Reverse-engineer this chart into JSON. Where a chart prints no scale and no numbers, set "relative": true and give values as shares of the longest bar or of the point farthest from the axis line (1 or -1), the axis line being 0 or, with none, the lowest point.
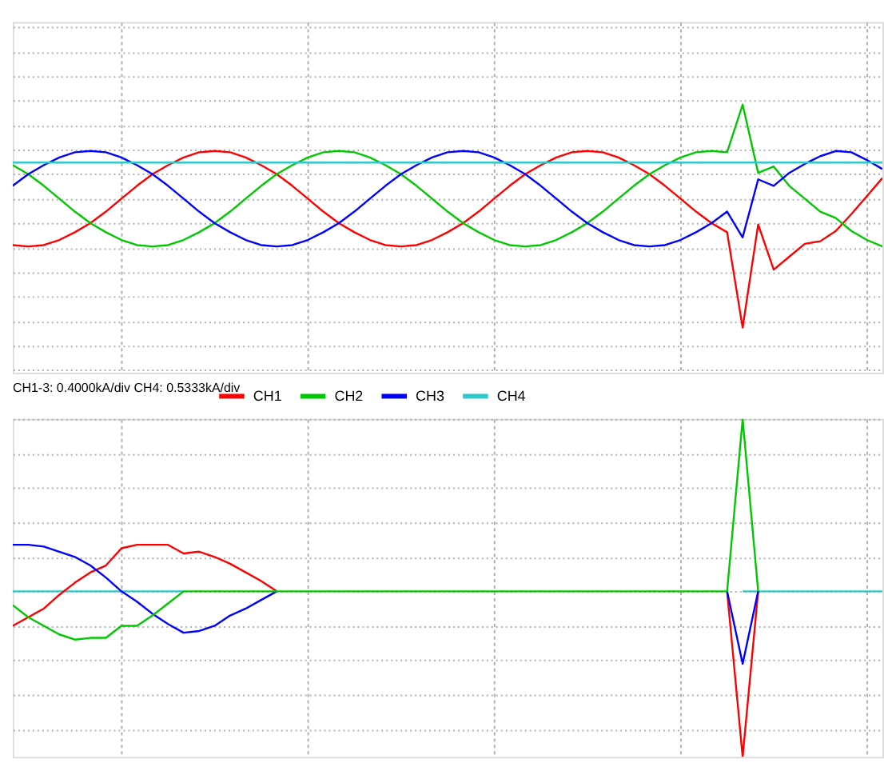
{
  "chart_data": [
    {
      "type": "line",
      "relative": true,
      "grid": true,
      "legend": "bottom",
      "tick_labels": false,
      "annotations": [
        "CH1-3: 0.4000kA/div CH4: 0.5333kA/div"
      ],
      "categories": [
        null,
        null,
        null,
        null,
        null,
        null,
        null,
        null,
        null,
        null,
        null,
        null,
        null,
        null,
        null,
        null,
        null,
        null,
        null,
        null,
        null,
        null,
        null,
        null,
        null,
        null,
        null,
        null,
        null,
        null,
        null,
        null,
        null,
        null,
        null,
        null,
        null,
        null,
        null,
        null,
        null,
        null,
        null,
        null,
        null,
        null,
        null,
        null,
        null,
        null,
        null,
        null,
        null,
        null,
        null,
        null,
        null
      ],
      "series": [
        {
          "name": "CH1",
          "color": "#ff0000",
          "values": [
            -0.36,
            -0.37,
            -0.36,
            -0.32,
            -0.26,
            -0.19,
            -0.1,
            0,
            0.1,
            0.19,
            0.26,
            0.32,
            0.36,
            0.37,
            0.36,
            0.32,
            0.26,
            0.19,
            0.1,
            0,
            -0.1,
            -0.19,
            -0.26,
            -0.32,
            -0.36,
            -0.37,
            -0.36,
            -0.32,
            -0.26,
            -0.19,
            -0.1,
            0,
            0.1,
            0.19,
            0.26,
            0.32,
            0.36,
            0.37,
            0.36,
            0.32,
            0.26,
            0.19,
            0.1,
            0,
            -0.1,
            -0.19,
            -0.26,
            -1.0,
            -0.2,
            -0.55,
            -0.45,
            -0.35,
            -0.33,
            -0.25,
            -0.12,
            0.02,
            0.16
          ]
        },
        {
          "name": "CH2",
          "color": "#00c800",
          "values": [
            0.26,
            0.19,
            0.1,
            0,
            -0.1,
            -0.19,
            -0.26,
            -0.32,
            -0.36,
            -0.37,
            -0.36,
            -0.32,
            -0.26,
            -0.19,
            -0.1,
            0,
            0.1,
            0.19,
            0.26,
            0.32,
            0.36,
            0.37,
            0.36,
            0.32,
            0.26,
            0.19,
            0.1,
            0,
            -0.1,
            -0.19,
            -0.26,
            -0.32,
            -0.36,
            -0.37,
            -0.36,
            -0.32,
            -0.26,
            -0.19,
            -0.1,
            0,
            0.1,
            0.19,
            0.26,
            0.32,
            0.36,
            0.37,
            0.36,
            0.73,
            0.2,
            0.25,
            0.1,
            0.0,
            -0.1,
            -0.15,
            -0.25,
            -0.32,
            -0.37
          ]
        },
        {
          "name": "CH3",
          "color": "#0000ff",
          "values": [
            0.1,
            0.19,
            0.26,
            0.32,
            0.36,
            0.37,
            0.36,
            0.32,
            0.26,
            0.19,
            0.1,
            0,
            -0.1,
            -0.19,
            -0.26,
            -0.32,
            -0.36,
            -0.37,
            -0.36,
            -0.32,
            -0.26,
            -0.19,
            -0.1,
            0,
            0.1,
            0.19,
            0.26,
            0.32,
            0.36,
            0.37,
            0.36,
            0.32,
            0.26,
            0.19,
            0.1,
            0,
            -0.1,
            -0.19,
            -0.26,
            -0.32,
            -0.36,
            -0.37,
            -0.36,
            -0.32,
            -0.26,
            -0.19,
            -0.1,
            -0.3,
            0.15,
            0.1,
            0.2,
            0.27,
            0.33,
            0.37,
            0.36,
            0.3,
            0.23
          ]
        },
        {
          "name": "CH4",
          "color": "#30c8c8",
          "values": [
            0.28,
            0.28,
            0.28,
            0.28,
            0.28,
            0.28,
            0.28,
            0.28,
            0.28,
            0.28,
            0.28,
            0.28,
            0.28,
            0.28,
            0.28,
            0.28,
            0.28,
            0.28,
            0.28,
            0.28,
            0.28,
            0.28,
            0.28,
            0.28,
            0.28,
            0.28,
            0.28,
            0.28,
            0.28,
            0.28,
            0.28,
            0.28,
            0.28,
            0.28,
            0.28,
            0.28,
            0.28,
            0.28,
            0.28,
            0.28,
            0.28,
            0.28,
            0.28,
            0.28,
            0.28,
            0.28,
            0.28,
            0.28,
            0.28,
            0.28,
            0.28,
            0.28,
            0.28,
            0.28,
            0.28,
            0.28,
            0.28
          ]
        }
      ]
    },
    {
      "type": "line",
      "relative": true,
      "grid": true,
      "tick_labels": false,
      "categories": [
        null,
        null,
        null,
        null,
        null,
        null,
        null,
        null,
        null,
        null,
        null,
        null,
        null,
        null,
        null,
        null,
        null,
        null,
        null,
        null,
        null,
        null,
        null,
        null,
        null,
        null,
        null,
        null,
        null,
        null,
        null,
        null,
        null,
        null,
        null,
        null,
        null,
        null,
        null,
        null,
        null,
        null,
        null,
        null,
        null,
        null,
        null,
        null,
        null,
        null,
        null,
        null,
        null,
        null,
        null,
        null,
        null
      ],
      "series": [
        {
          "color": "#30c8c8",
          "values": [
            0,
            0,
            0,
            0,
            0,
            0,
            0,
            0,
            0,
            0,
            0,
            0,
            null,
            null,
            null,
            null,
            null,
            null,
            null,
            null,
            null,
            null,
            null,
            null,
            null,
            null,
            null,
            null,
            null,
            null,
            null,
            null,
            null,
            null,
            null,
            null,
            null,
            null,
            null,
            null,
            null,
            null,
            null,
            null,
            null,
            null,
            null,
            0,
            0,
            0,
            0,
            0,
            0,
            0,
            0,
            0,
            0
          ]
        },
        {
          "color": "#ff0000",
          "values": [
            -0.2,
            -0.15,
            -0.1,
            -0.02,
            0.05,
            0.11,
            0.15,
            0.25,
            0.27,
            0.27,
            0.27,
            0.22,
            0.23,
            0.2,
            0.16,
            0.11,
            0.06,
            0,
            null,
            null,
            null,
            null,
            null,
            null,
            null,
            null,
            null,
            null,
            null,
            null,
            null,
            null,
            null,
            null,
            null,
            null,
            null,
            null,
            null,
            null,
            null,
            null,
            null,
            null,
            null,
            null,
            0,
            -0.96,
            0,
            null,
            null,
            null,
            null,
            null,
            null,
            null,
            null
          ]
        },
        {
          "color": "#0000ff",
          "values": [
            0.27,
            0.27,
            0.26,
            0.23,
            0.2,
            0.15,
            0.08,
            0,
            -0.06,
            -0.13,
            -0.19,
            -0.24,
            -0.23,
            -0.2,
            -0.14,
            -0.1,
            -0.05,
            0,
            null,
            null,
            null,
            null,
            null,
            null,
            null,
            null,
            null,
            null,
            null,
            null,
            null,
            null,
            null,
            null,
            null,
            null,
            null,
            null,
            null,
            null,
            null,
            null,
            null,
            null,
            null,
            null,
            0,
            -0.42,
            0,
            null,
            null,
            null,
            null,
            null,
            null,
            null,
            null
          ]
        },
        {
          "color": "#00c800",
          "values": [
            -0.08,
            -0.15,
            -0.2,
            -0.25,
            -0.28,
            -0.27,
            -0.27,
            -0.2,
            -0.2,
            -0.14,
            -0.07,
            0,
            0,
            0,
            0,
            0,
            0,
            0,
            0,
            0,
            0,
            0,
            0,
            0,
            0,
            0,
            0,
            0,
            0,
            0,
            0,
            0,
            0,
            0,
            0,
            0,
            0,
            0,
            0,
            0,
            0,
            0,
            0,
            0,
            0,
            0,
            0,
            1.0,
            0,
            null,
            null,
            null,
            null,
            null,
            null,
            null,
            null
          ]
        }
      ]
    }
  ]
}
